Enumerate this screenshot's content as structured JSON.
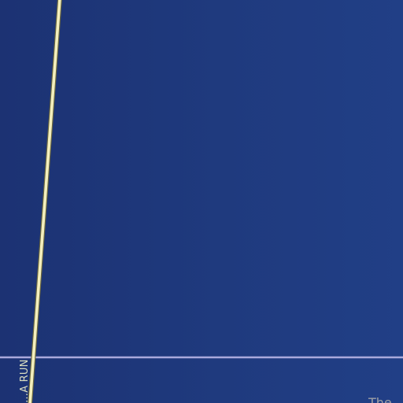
{
  "map": {
    "background_color": "#1f3a7e",
    "road": {
      "name": "…A RUN",
      "fill_color": "#f4efbd",
      "casing_color": "#6b6840"
    },
    "boundary_line": {
      "color": "#a9a9dc"
    },
    "place_label": {
      "text": "The"
    }
  }
}
